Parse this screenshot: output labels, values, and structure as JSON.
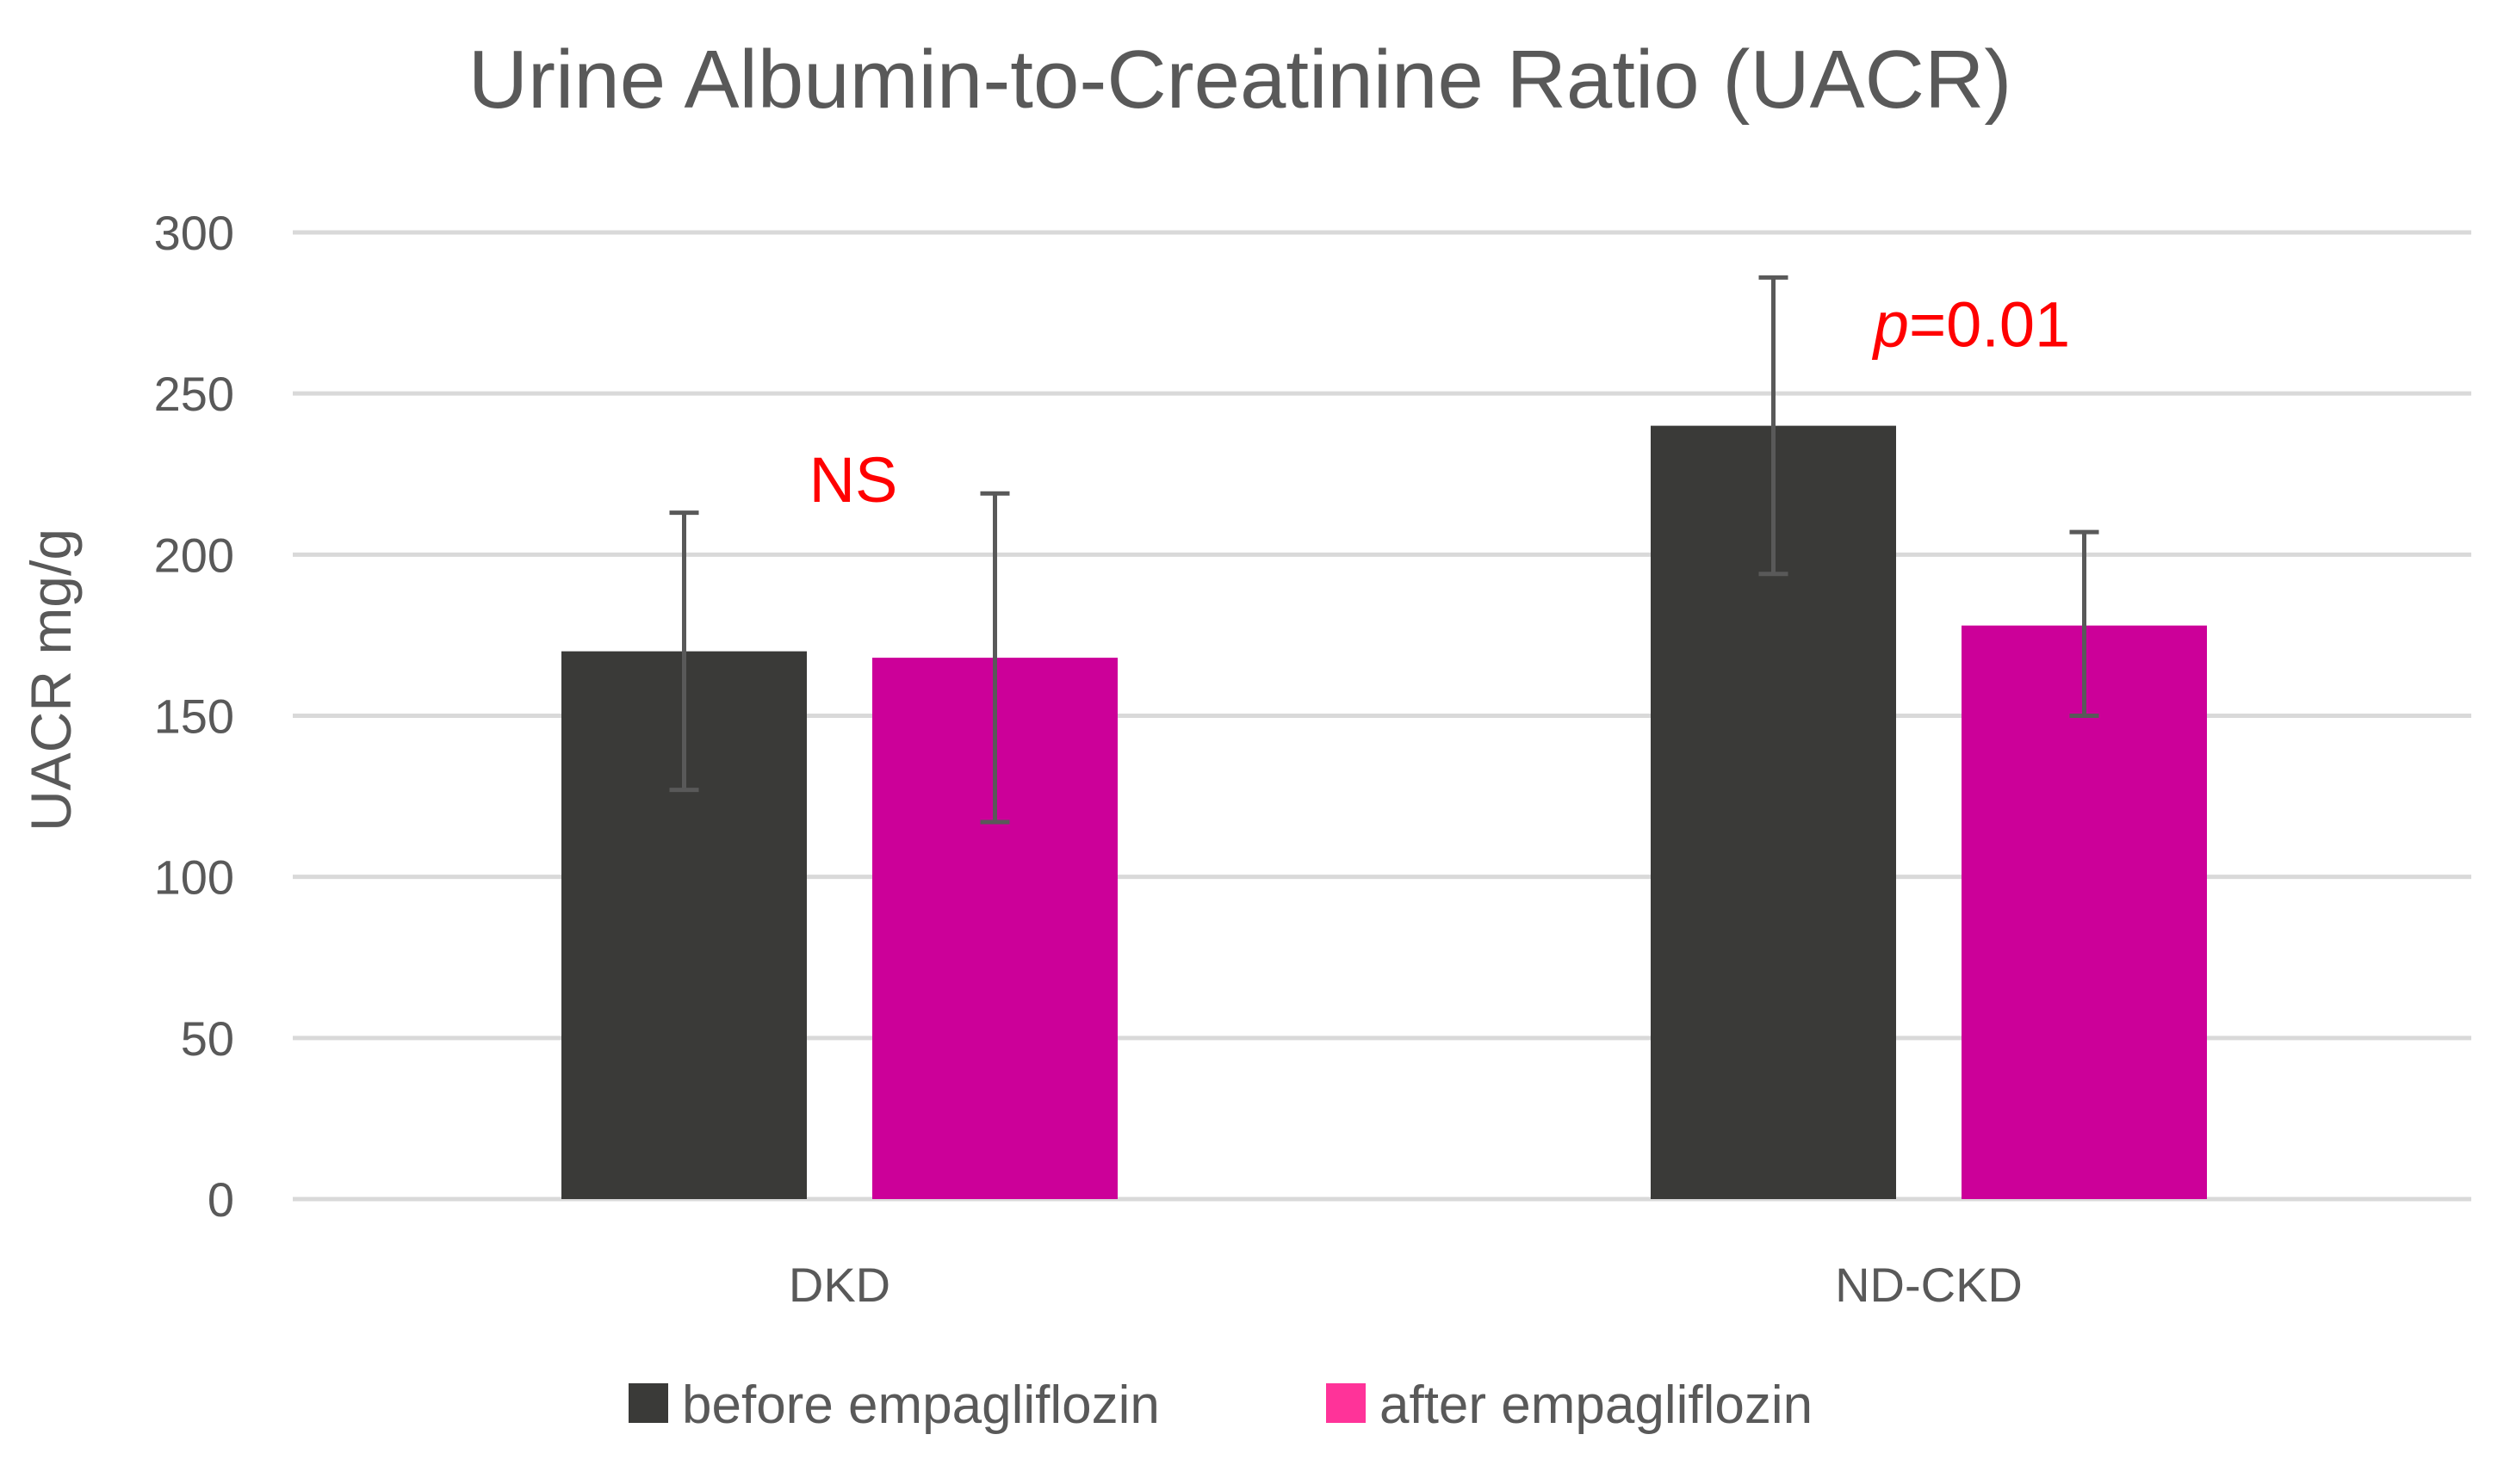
{
  "chart_data": {
    "type": "bar",
    "title": "Urine Albumin-to-Creatinine Ratio (UACR)",
    "xlabel": "",
    "ylabel": "UACR mg/g",
    "ylim": [
      0,
      300
    ],
    "yticks": [
      0,
      50,
      100,
      150,
      200,
      250,
      300
    ],
    "grid": true,
    "legend_position": "bottom",
    "categories": [
      "DKD",
      "ND-CKD"
    ],
    "series": [
      {
        "name": "before empagliflozin",
        "color": "#3a3a38",
        "values": [
          170,
          240
        ],
        "error_low": [
          127,
          194
        ],
        "error_high": [
          213,
          286
        ]
      },
      {
        "name": "after empagliflozin",
        "color": "#cc0099",
        "values": [
          168,
          178
        ],
        "error_low": [
          117,
          150
        ],
        "error_high": [
          219,
          207
        ]
      }
    ],
    "annotations": [
      {
        "category": "DKD",
        "italic_prefix": "",
        "text": "NS",
        "color": "#ff0000"
      },
      {
        "category": "ND-CKD",
        "italic_prefix": "p",
        "text": "=0.01",
        "color": "#ff0000"
      }
    ],
    "legend_colors": [
      "#3a3a38",
      "#ff3399"
    ],
    "colors": {
      "grid": "#d9d9d9",
      "text": "#595959",
      "error_bar": "#595959"
    }
  }
}
